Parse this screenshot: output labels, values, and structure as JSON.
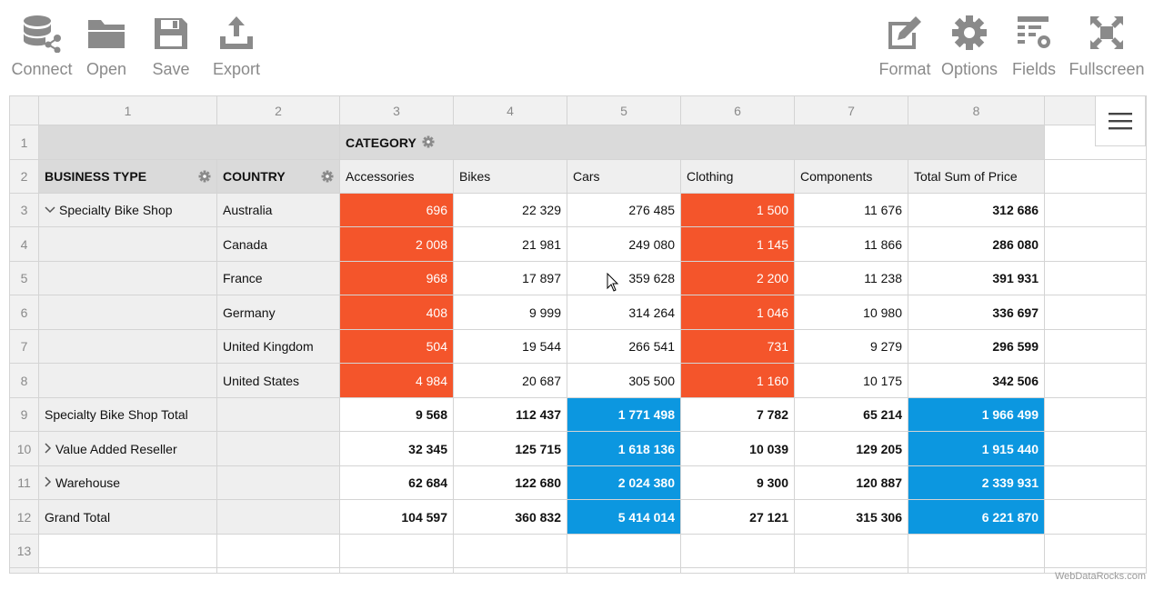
{
  "toolbar": {
    "connect": "Connect",
    "open": "Open",
    "save": "Save",
    "export": "Export",
    "format": "Format",
    "options": "Options",
    "fields": "Fields",
    "fullscreen": "Fullscreen"
  },
  "grid": {
    "col_numbers": [
      "1",
      "2",
      "3",
      "4",
      "5",
      "6",
      "7",
      "8"
    ],
    "row_numbers": [
      "1",
      "2",
      "3",
      "4",
      "5",
      "6",
      "7",
      "8",
      "9",
      "10",
      "11",
      "12",
      "13"
    ],
    "category_label": "CATEGORY",
    "business_type_label": "BUSINESS TYPE",
    "country_label": "COUNTRY",
    "columns": [
      "Accessories",
      "Bikes",
      "Cars",
      "Clothing",
      "Components",
      "Total Sum of Price"
    ],
    "rows": [
      {
        "business": "Specialty Bike Shop",
        "country": "Australia",
        "values": [
          "696",
          "22 329",
          "276 485",
          "1 500",
          "11 676",
          "312 686"
        ]
      },
      {
        "business": "",
        "country": "Canada",
        "values": [
          "2 008",
          "21 981",
          "249 080",
          "1 145",
          "11 866",
          "286 080"
        ]
      },
      {
        "business": "",
        "country": "France",
        "values": [
          "968",
          "17 897",
          "359 628",
          "2 200",
          "11 238",
          "391 931"
        ]
      },
      {
        "business": "",
        "country": "Germany",
        "values": [
          "408",
          "9 999",
          "314 264",
          "1 046",
          "10 980",
          "336 697"
        ]
      },
      {
        "business": "",
        "country": "United Kingdom",
        "values": [
          "504",
          "19 544",
          "266 541",
          "731",
          "9 279",
          "296 599"
        ]
      },
      {
        "business": "",
        "country": "United States",
        "values": [
          "4 984",
          "20 687",
          "305 500",
          "1 160",
          "10 175",
          "342 506"
        ]
      }
    ],
    "totals": [
      {
        "label": "Specialty Bike Shop Total",
        "values": [
          "9 568",
          "112 437",
          "1 771 498",
          "7 782",
          "65 214",
          "1 966 499"
        ]
      },
      {
        "label": "Value Added Reseller",
        "values": [
          "32 345",
          "125 715",
          "1 618 136",
          "10 039",
          "129 205",
          "1 915 440"
        ]
      },
      {
        "label": "Warehouse",
        "values": [
          "62 684",
          "122 680",
          "2 024 380",
          "9 300",
          "120 887",
          "2 339 931"
        ]
      },
      {
        "label": "Grand Total",
        "values": [
          "104 597",
          "360 832",
          "5 414 014",
          "27 121",
          "315 306",
          "6 221 870"
        ]
      }
    ]
  },
  "colors": {
    "highlight_low": "#f4552b",
    "highlight_high": "#0c97e0"
  },
  "footer": "WebDataRocks.com"
}
